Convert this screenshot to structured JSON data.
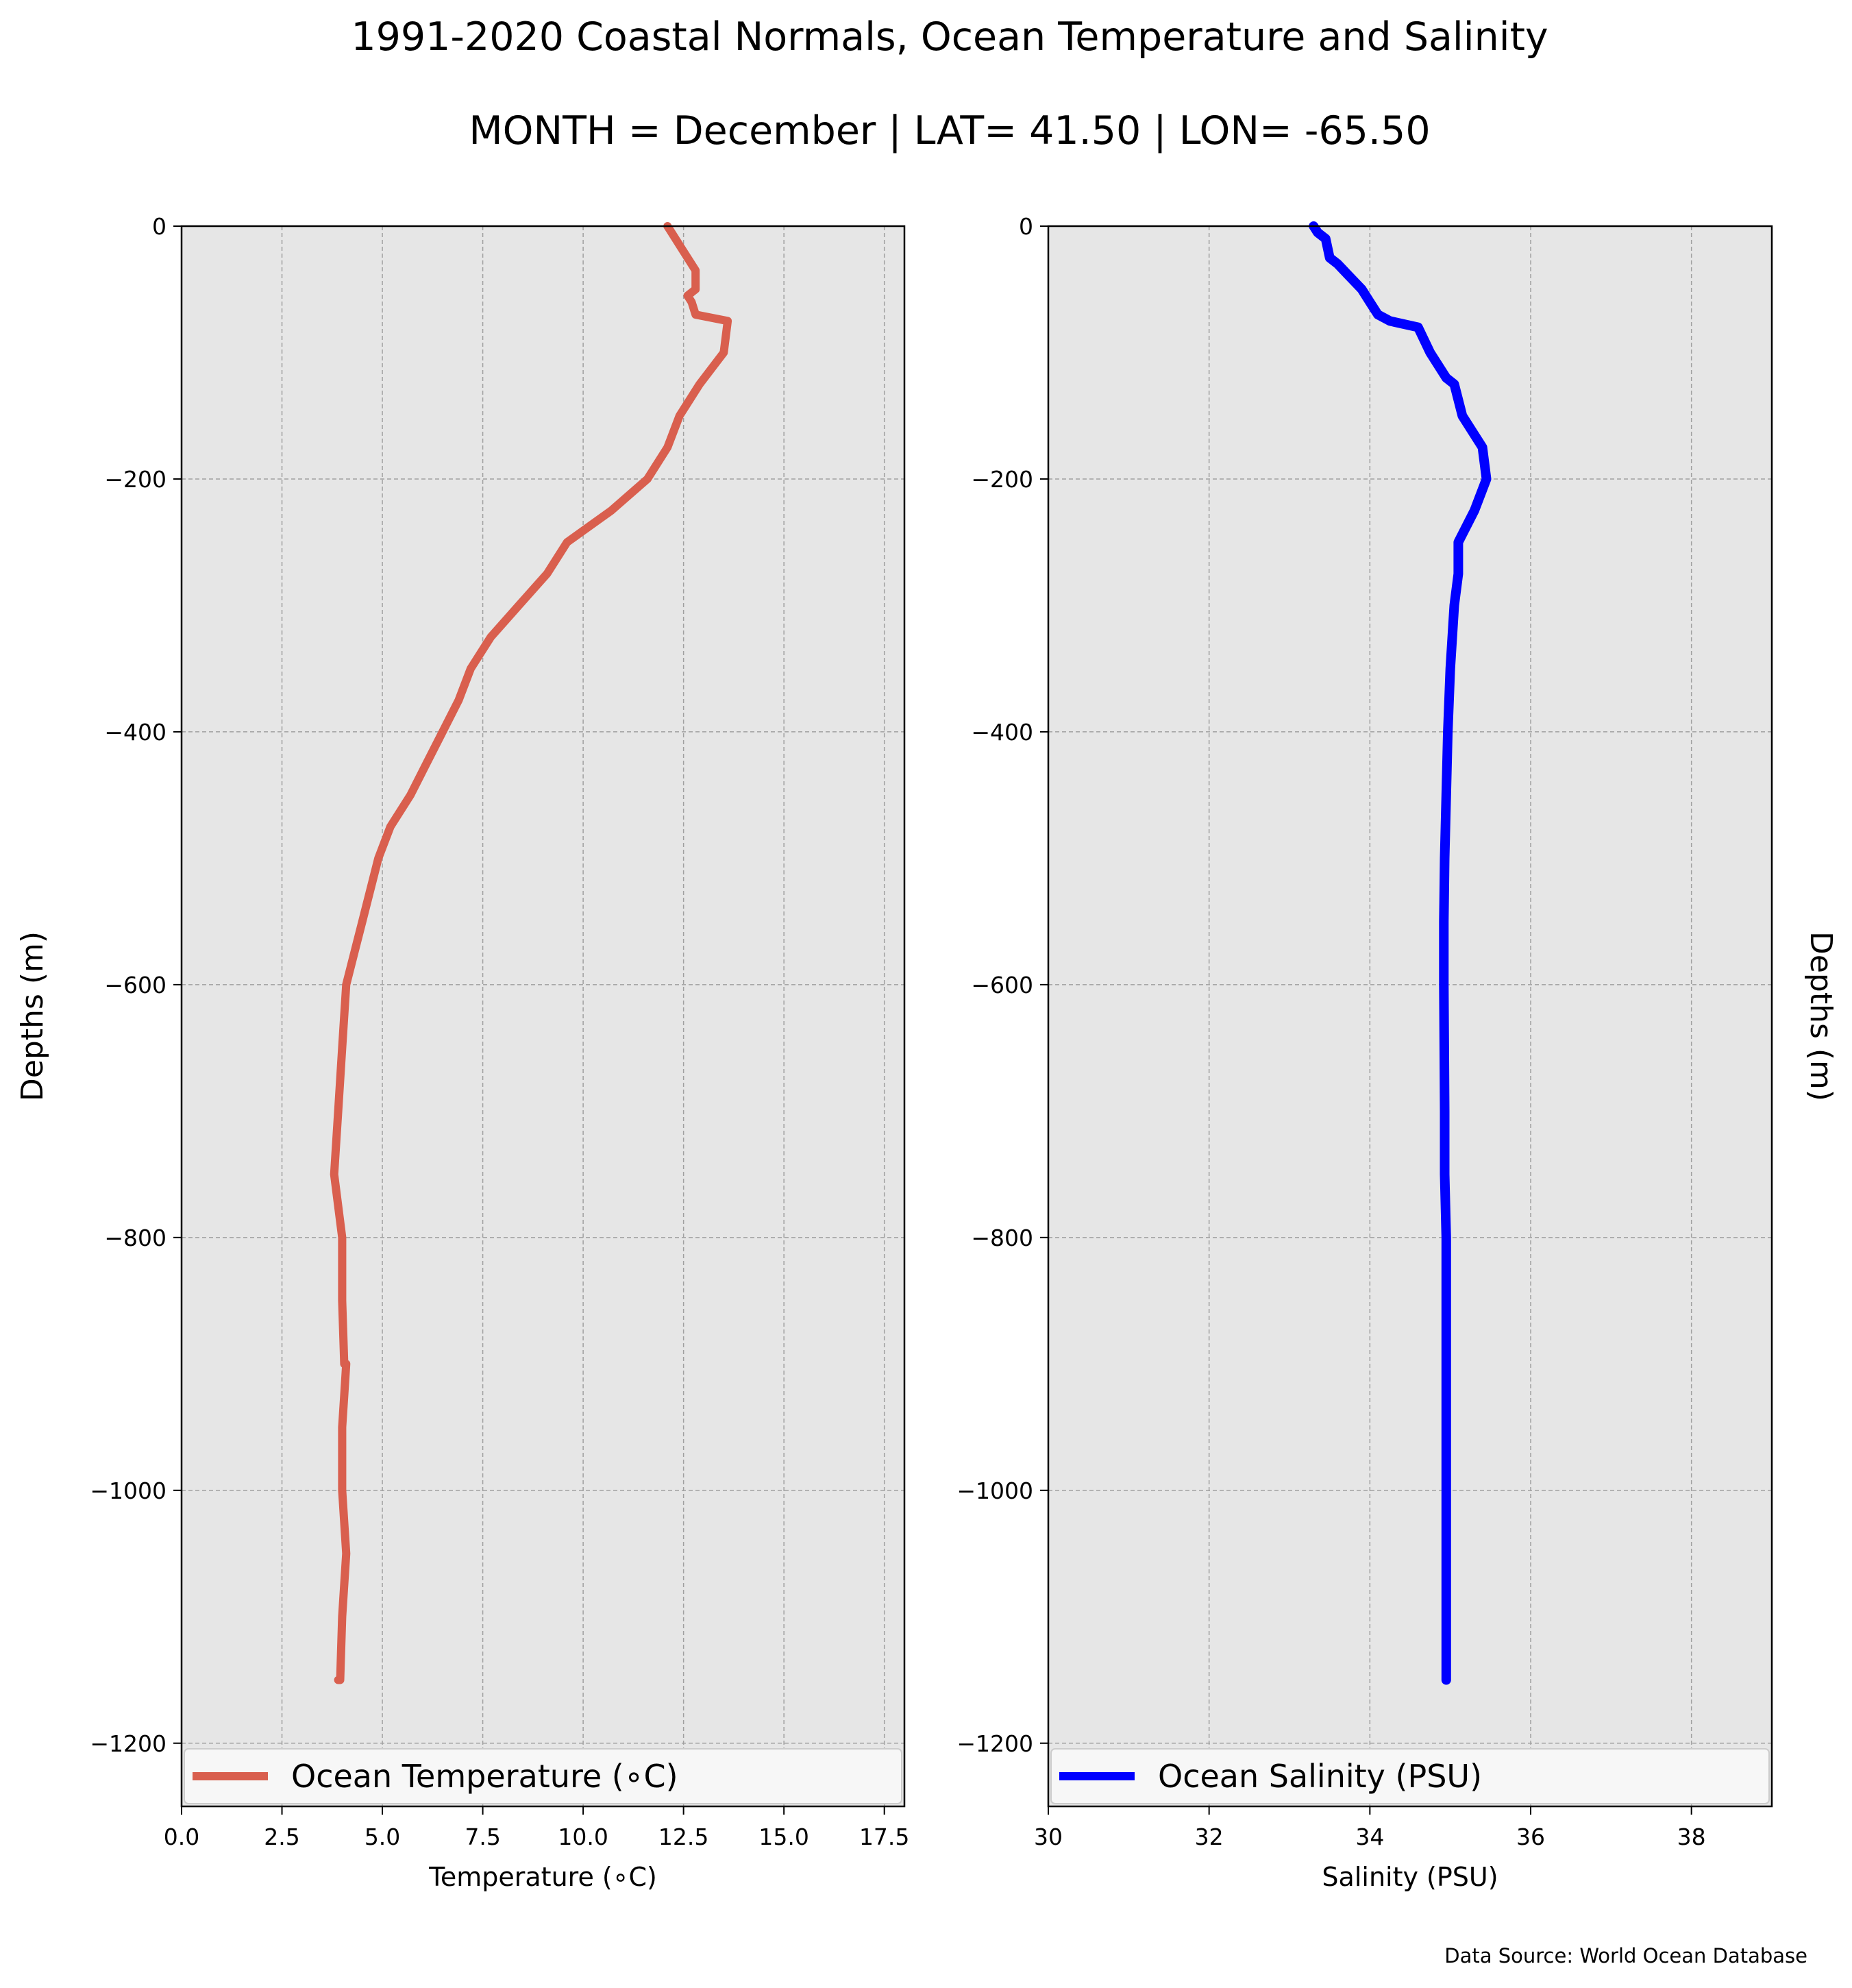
{
  "figure": {
    "title": "1991-2020 Coastal Normals, Ocean Temperature and Salinity",
    "subtitle": "MONTH = December | LAT= 41.50 | LON= -65.50",
    "source": "Data Source: World Ocean Database"
  },
  "chart_data": [
    {
      "type": "line",
      "xlabel": "Temperature ($^\\circ$C)",
      "xlabel_display": "Temperature (∘C)",
      "ylabel": "Depths (m)",
      "xlim": [
        0,
        18
      ],
      "ylim": [
        -1250,
        0
      ],
      "xticks": [
        0,
        2.5,
        5,
        7.5,
        10,
        12.5,
        15,
        17.5
      ],
      "xtick_labels": [
        "0.0",
        "2.5",
        "5.0",
        "7.5",
        "10.0",
        "12.5",
        "15.0",
        "17.5"
      ],
      "yticks": [
        0,
        -200,
        -400,
        -600,
        -800,
        -1000,
        -1200
      ],
      "ytick_labels": [
        "0",
        "−200",
        "−400",
        "−600",
        "−800",
        "−1000",
        "−1200"
      ],
      "grid": true,
      "background": "#e6e6e6",
      "legend_location": "lower center",
      "series": [
        {
          "name": "Ocean Temperature (∘C)",
          "color": "#d95f4e",
          "x": [
            12.1,
            12.2,
            12.5,
            12.8,
            12.8,
            12.6,
            12.7,
            12.8,
            13.6,
            13.5,
            12.9,
            12.4,
            12.1,
            11.6,
            10.7,
            9.6,
            9.1,
            8.4,
            7.7,
            7.2,
            6.9,
            6.5,
            6.1,
            5.7,
            5.2,
            4.9,
            4.7,
            4.5,
            4.3,
            4.1,
            4.0,
            3.9,
            3.8,
            3.8,
            4.0,
            4.0,
            4.05,
            4.1,
            4.05,
            4.0,
            4.0,
            4.0,
            4.1,
            4.0,
            3.95,
            3.9
          ],
          "y": [
            0,
            -5,
            -20,
            -35,
            -50,
            -55,
            -60,
            -70,
            -75,
            -100,
            -125,
            -150,
            -175,
            -200,
            -225,
            -250,
            -275,
            -300,
            -325,
            -350,
            -375,
            -400,
            -425,
            -450,
            -475,
            -500,
            -525,
            -550,
            -575,
            -600,
            -650,
            -700,
            -750,
            -750,
            -800,
            -850,
            -900,
            -900,
            -925,
            -950,
            -1000,
            -1000,
            -1050,
            -1100,
            -1150,
            -1150
          ]
        }
      ]
    },
    {
      "type": "line",
      "xlabel": "Salinity (PSU)",
      "ylabel": "Depths (m)",
      "xlim": [
        30,
        39
      ],
      "ylim": [
        -1250,
        0
      ],
      "xticks": [
        30,
        32,
        34,
        36,
        38
      ],
      "xtick_labels": [
        "30",
        "32",
        "34",
        "36",
        "38"
      ],
      "yticks": [
        0,
        -200,
        -400,
        -600,
        -800,
        -1000,
        -1200
      ],
      "ytick_labels": [
        "0",
        "−200",
        "−400",
        "−600",
        "−800",
        "−1000",
        "−1200"
      ],
      "grid": true,
      "background": "#e6e6e6",
      "legend_location": "lower center",
      "series": [
        {
          "name": "Ocean Salinity (PSU)",
          "color": "#0000ff",
          "x": [
            33.3,
            33.35,
            33.45,
            33.5,
            33.6,
            33.75,
            33.9,
            34.0,
            34.1,
            34.25,
            34.6,
            34.75,
            34.95,
            35.05,
            35.15,
            35.4,
            35.45,
            35.45,
            35.3,
            35.1,
            35.1,
            35.05,
            35.0,
            34.97,
            34.95,
            34.93,
            34.92,
            34.92,
            34.93,
            34.93,
            34.95,
            34.95,
            34.95,
            34.95
          ],
          "y": [
            0,
            -5,
            -10,
            -25,
            -30,
            -40,
            -50,
            -60,
            -70,
            -75,
            -80,
            -100,
            -120,
            -125,
            -150,
            -175,
            -200,
            -200,
            -225,
            -250,
            -275,
            -300,
            -350,
            -400,
            -450,
            -500,
            -550,
            -600,
            -700,
            -750,
            -800,
            -900,
            -1000,
            -1150
          ]
        }
      ]
    }
  ]
}
